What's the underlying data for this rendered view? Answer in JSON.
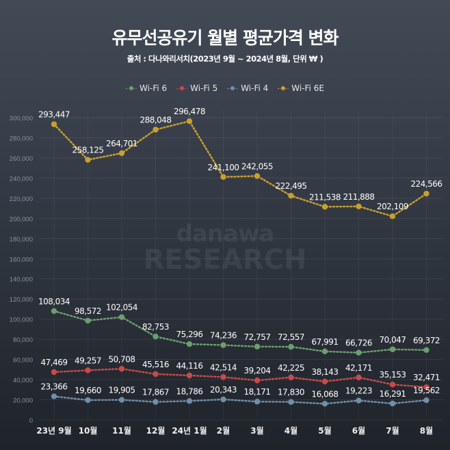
{
  "chart_data": {
    "type": "line",
    "title": "유무선공유기 월별 평균가격 변화",
    "subtitle": "출처 : 다나와리서치(2023년 9월 ~ 2024년 8월, 단위 ₩ )",
    "watermark": [
      "danawa",
      "RESEARCH"
    ],
    "categories": [
      "23년 9월",
      "10월",
      "11월",
      "12월",
      "24년 1월",
      "2월",
      "3월",
      "4월",
      "5월",
      "6월",
      "7월",
      "8월"
    ],
    "ylim": [
      0,
      300000
    ],
    "yticks": [
      0,
      20000,
      40000,
      60000,
      80000,
      100000,
      120000,
      140000,
      160000,
      180000,
      200000,
      220000,
      240000,
      260000,
      280000,
      300000
    ],
    "ytick_labels": [
      "0",
      "20,000",
      "40,000",
      "60,000",
      "80,000",
      "100,000",
      "120,000",
      "140,000",
      "160,000",
      "180,000",
      "200,000",
      "220,000",
      "240,000",
      "260,000",
      "280,000",
      "300,000"
    ],
    "grid": true,
    "legend_position": "top-center",
    "series": [
      {
        "name": "Wi-Fi 6",
        "color": "#6a9f6e",
        "values": [
          108034,
          98572,
          102054,
          82753,
          75296,
          74236,
          72757,
          72557,
          67991,
          66726,
          70047,
          69372
        ],
        "labels": [
          "108,034",
          "98,572",
          "102,054",
          "82,753",
          "75,296",
          "74,236",
          "72,757",
          "72,557",
          "67,991",
          "66,726",
          "70,047",
          "69,372"
        ]
      },
      {
        "name": "Wi-Fi 5",
        "color": "#c94a4a",
        "values": [
          47469,
          49257,
          50708,
          45516,
          44116,
          42514,
          39204,
          42225,
          38143,
          42171,
          35153,
          32471
        ],
        "labels": [
          "47,469",
          "49,257",
          "50,708",
          "45,516",
          "44,116",
          "42,514",
          "39,204",
          "42,225",
          "38,143",
          "42,171",
          "35,153",
          "32,471"
        ]
      },
      {
        "name": "Wi-Fi 4",
        "color": "#6f8fab",
        "values": [
          23366,
          19660,
          19905,
          17867,
          18786,
          20343,
          18171,
          17830,
          16068,
          19223,
          16291,
          19562
        ],
        "labels": [
          "23,366",
          "19,660",
          "19,905",
          "17,867",
          "18,786",
          "20,343",
          "18,171",
          "17,830",
          "16,068",
          "19,223",
          "16,291",
          "19,562"
        ]
      },
      {
        "name": "Wi-Fi 6E",
        "color": "#c9a02c",
        "values": [
          293447,
          258125,
          264701,
          288048,
          296478,
          241100,
          242055,
          222495,
          211538,
          211888,
          202109,
          224566
        ],
        "labels": [
          "293,447",
          "258,125",
          "264,701",
          "288,048",
          "296,478",
          "241,100",
          "242,055",
          "222,495",
          "211,538",
          "211,888",
          "202,109",
          "224,566"
        ]
      }
    ]
  }
}
